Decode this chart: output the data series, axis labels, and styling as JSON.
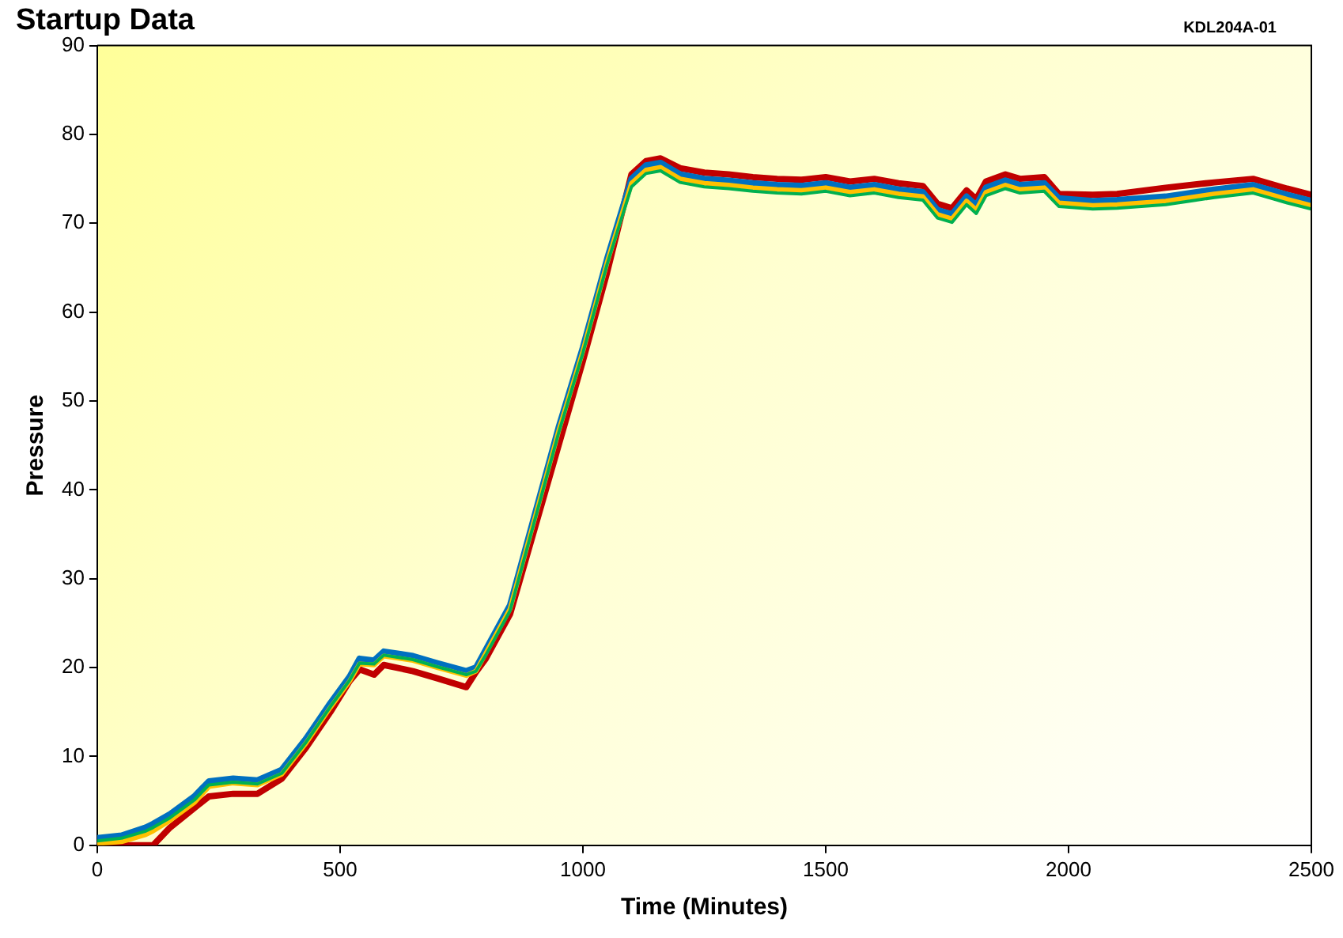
{
  "chart_data": {
    "type": "line",
    "title": "Startup Data",
    "annotations": [
      "KDL204A-01"
    ],
    "xlabel": "Time (Minutes)",
    "ylabel": "Pressure",
    "x": [
      0,
      50,
      100,
      115,
      150,
      200,
      230,
      280,
      330,
      380,
      430,
      480,
      520,
      540,
      570,
      590,
      650,
      700,
      760,
      780,
      800,
      850,
      900,
      950,
      1000,
      1050,
      1100,
      1130,
      1160,
      1200,
      1250,
      1300,
      1350,
      1400,
      1450,
      1500,
      1550,
      1600,
      1650,
      1700,
      1730,
      1760,
      1790,
      1810,
      1830,
      1870,
      1900,
      1950,
      1980,
      2050,
      2100,
      2200,
      2300,
      2380,
      2450,
      2500
    ],
    "xlim": [
      0,
      2500
    ],
    "xticks": [
      0,
      500,
      1000,
      1500,
      2000,
      2500
    ],
    "ylim": [
      0,
      90
    ],
    "yticks": [
      0,
      10,
      20,
      30,
      40,
      50,
      60,
      70,
      80,
      90
    ],
    "grid": false,
    "legend": false,
    "marker": "none",
    "line_style": "solid",
    "series": [
      {
        "color": "#00b050",
        "values": [
          0.5,
          0.8,
          1.6,
          2,
          3.1,
          5.1,
          6.8,
          7.1,
          6.9,
          8.1,
          11.6,
          15.6,
          18.6,
          20.5,
          20.4,
          21.4,
          20.9,
          20.1,
          19.2,
          19.6,
          21.4,
          26.4,
          36.4,
          46.4,
          55.4,
          65.4,
          74.1,
          75.6,
          75.9,
          74.6,
          74.1,
          73.9,
          73.6,
          73.4,
          73.3,
          73.6,
          73.1,
          73.4,
          72.9,
          72.6,
          70.6,
          70.1,
          72.1,
          71.1,
          73.1,
          73.9,
          73.4,
          73.6,
          71.9,
          71.6,
          71.7,
          72.1,
          72.9,
          73.4,
          72.3,
          71.6
        ]
      },
      {
        "color": "#ffc000",
        "values": [
          0.2,
          0.4,
          1.2,
          1.6,
          2.8,
          4.8,
          6.6,
          7,
          6.8,
          8,
          11.5,
          15.5,
          18.5,
          20.4,
          20.3,
          21.3,
          20.8,
          20,
          19.1,
          19.6,
          21.6,
          26.6,
          36.6,
          46.6,
          55.6,
          65.6,
          74.5,
          76,
          76.3,
          75,
          74.5,
          74.3,
          74,
          73.8,
          73.7,
          74,
          73.5,
          73.8,
          73.3,
          73,
          71,
          70.5,
          72.5,
          71.5,
          73.5,
          74.3,
          73.8,
          74,
          72.3,
          72,
          72.1,
          72.5,
          73.3,
          73.8,
          72.7,
          72
        ]
      },
      {
        "color": "#0070c0",
        "values": [
          0.8,
          1.1,
          2,
          2.4,
          3.5,
          5.5,
          7.2,
          7.5,
          7.3,
          8.5,
          12,
          16,
          19,
          21,
          20.8,
          21.8,
          21.3,
          20.5,
          19.6,
          20,
          22,
          27,
          37,
          47,
          56,
          66,
          75,
          76.5,
          76.8,
          75.5,
          75,
          74.8,
          74.5,
          74.3,
          74.2,
          74.5,
          74,
          74.3,
          73.8,
          73.5,
          71.5,
          71,
          73,
          72,
          74,
          74.8,
          74.3,
          74.5,
          72.8,
          72.5,
          72.6,
          73,
          73.8,
          74.3,
          73.2,
          72.5
        ]
      },
      {
        "color": "#c00000",
        "values": [
          0,
          0,
          0,
          0,
          2,
          4.2,
          5.5,
          5.8,
          5.8,
          7.5,
          11,
          15,
          18.5,
          19.8,
          19.2,
          20.3,
          19.6,
          18.8,
          17.8,
          19.5,
          21,
          26,
          35.5,
          45,
          54.5,
          64.5,
          75.5,
          77,
          77.3,
          76.2,
          75.7,
          75.5,
          75.2,
          75,
          74.9,
          75.2,
          74.7,
          75,
          74.5,
          74.2,
          72.2,
          71.7,
          73.7,
          72.7,
          74.7,
          75.5,
          75,
          75.2,
          73.3,
          73.2,
          73.3,
          74,
          74.6,
          75,
          73.9,
          73.2
        ]
      }
    ]
  }
}
